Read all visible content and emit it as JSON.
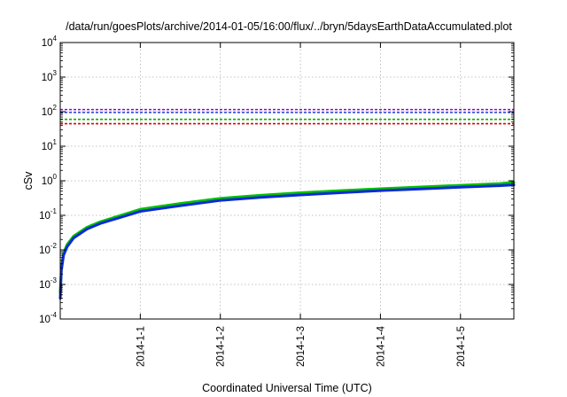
{
  "chart_data": {
    "type": "line",
    "title": "/data/run/goesPlots/archive/2014-01-05/16:00/flux/../bryn/5daysEarthDataAccumulated.plot",
    "xlabel": "Coordinated Universal Time (UTC)",
    "ylabel": "cSv",
    "y_scale": "log",
    "ylim": [
      0.0001,
      10000
    ],
    "xlim": [
      "2013-12-31T00:00",
      "2014-01-05T16:00"
    ],
    "x_ticks": [
      "2014-1-1",
      "2014-1-2",
      "2014-1-3",
      "2014-1-4",
      "2014-1-5"
    ],
    "y_ticks": [
      {
        "value": 0.0001,
        "base": "10",
        "exp": "-4"
      },
      {
        "value": 0.001,
        "base": "10",
        "exp": "-3"
      },
      {
        "value": 0.01,
        "base": "10",
        "exp": "-2"
      },
      {
        "value": 0.1,
        "base": "10",
        "exp": "-1"
      },
      {
        "value": 1,
        "base": "10",
        "exp": "0"
      },
      {
        "value": 10,
        "base": "10",
        "exp": "1"
      },
      {
        "value": 100,
        "base": "10",
        "exp": "2"
      },
      {
        "value": 1000,
        "base": "10",
        "exp": "3"
      },
      {
        "value": 10000,
        "base": "10",
        "exp": "4"
      }
    ],
    "grid": true,
    "reference_lines": [
      {
        "value": 115,
        "color": "#9400d3",
        "style": "dashed"
      },
      {
        "value": 95,
        "color": "#1f3fd6",
        "style": "dashed"
      },
      {
        "value": 60,
        "color": "#00b000",
        "style": "dashed"
      },
      {
        "value": 45,
        "color": "#e00000",
        "style": "dashed"
      }
    ],
    "series": [
      {
        "color": "#00c000",
        "width": 3,
        "x": [
          "2013-12-31T00:00",
          "2013-12-31T00:20",
          "2013-12-31T01:00",
          "2013-12-31T02:00",
          "2013-12-31T04:00",
          "2013-12-31T08:00",
          "2013-12-31T12:00",
          "2014-01-01T00:00",
          "2014-01-01T12:00",
          "2014-01-02T00:00",
          "2014-01-02T12:00",
          "2014-01-03T00:00",
          "2014-01-03T12:00",
          "2014-01-04T00:00",
          "2014-01-04T12:00",
          "2014-01-05T00:00",
          "2014-01-05T12:00",
          "2014-01-05T16:00"
        ],
        "y": [
          0.0006,
          0.003,
          0.008,
          0.014,
          0.025,
          0.045,
          0.065,
          0.15,
          0.22,
          0.31,
          0.38,
          0.45,
          0.52,
          0.59,
          0.66,
          0.74,
          0.83,
          0.9
        ]
      },
      {
        "color": "#0a2bd6",
        "width": 3,
        "x": [
          "2013-12-31T00:00",
          "2013-12-31T00:20",
          "2013-12-31T01:00",
          "2013-12-31T02:00",
          "2013-12-31T04:00",
          "2013-12-31T08:00",
          "2013-12-31T12:00",
          "2014-01-01T00:00",
          "2014-01-01T12:00",
          "2014-01-02T00:00",
          "2014-01-02T12:00",
          "2014-01-03T00:00",
          "2014-01-03T12:00",
          "2014-01-04T00:00",
          "2014-01-04T12:00",
          "2014-01-05T00:00",
          "2014-01-05T12:00",
          "2014-01-05T16:00"
        ],
        "y": [
          0.0004,
          0.0025,
          0.007,
          0.012,
          0.022,
          0.04,
          0.058,
          0.13,
          0.19,
          0.27,
          0.33,
          0.39,
          0.45,
          0.52,
          0.58,
          0.65,
          0.72,
          0.76
        ]
      }
    ]
  }
}
